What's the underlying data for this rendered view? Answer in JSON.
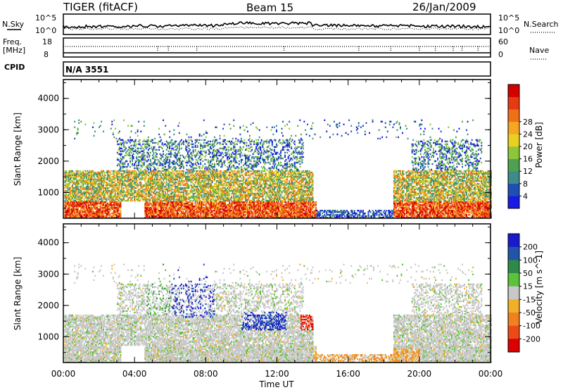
{
  "header": {
    "title": "TIGER (fitACF)",
    "beam": "Beam 15",
    "date": "26/Jan/2009"
  },
  "top_strip": {
    "nsky_label": "N.Sky",
    "nsky_ticks": [
      "10^5",
      "10^0"
    ],
    "nsearch_label": "N.Search",
    "nsearch_ticks": [
      "10^5",
      "10^0"
    ],
    "freq_label": "Freq.",
    "freq_unit": "[MHz]",
    "freq_ticks": [
      "18",
      "8"
    ],
    "nave_label": "Nave",
    "nave_ticks": [
      "60",
      "0"
    ],
    "cpid_label": "CPID",
    "cpid_value": "N/A 3551"
  },
  "chart_data": [
    {
      "type": "heatmap",
      "name": "power-panel",
      "ylabel": "Slant Range [km]",
      "x_ticks": [
        "00:00",
        "04:00",
        "08:00",
        "12:00",
        "16:00",
        "20:00",
        "00:00"
      ],
      "x_range_hours": [
        0,
        24
      ],
      "y_ticks": [
        1000,
        2000,
        3000,
        4000
      ],
      "y_range_km": [
        180,
        4600
      ],
      "colorbar": {
        "label": "Power [dB]",
        "ticks": [
          "4",
          "8",
          "12",
          "16",
          "20",
          "24",
          "28"
        ],
        "colors": [
          "#1a1ae6",
          "#1f4fb3",
          "#3f8a8a",
          "#4fa050",
          "#8cc63a",
          "#e8d020",
          "#f5a623",
          "#f07018",
          "#e63a12",
          "#d40000"
        ]
      }
    },
    {
      "type": "heatmap",
      "name": "velocity-panel",
      "ylabel": "Slant Range [km]",
      "xlabel": "Time UT",
      "x_ticks": [
        "00:00",
        "04:00",
        "08:00",
        "12:00",
        "16:00",
        "20:00",
        "00:00"
      ],
      "x_range_hours": [
        0,
        24
      ],
      "y_ticks": [
        1000,
        2000,
        3000,
        4000
      ],
      "y_range_km": [
        180,
        4600
      ],
      "colorbar": {
        "label": "Velocity [m s^-1]",
        "ticks": [
          "200",
          "100",
          "50",
          "15",
          "-15",
          "-50",
          "-100",
          "-200"
        ],
        "colors": [
          "#1a1acc",
          "#2255aa",
          "#2e8a4a",
          "#5cc23a",
          "#c8c8c8",
          "#f0b028",
          "#f08020",
          "#ee4a18",
          "#dd0000"
        ]
      }
    }
  ]
}
